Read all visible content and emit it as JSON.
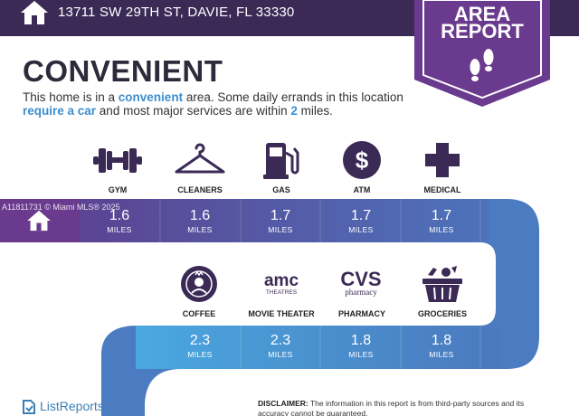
{
  "header": {
    "address": "13711 SW 29TH ST, DAVIE, FL 33330",
    "home_icon": "house-icon"
  },
  "ribbon": {
    "line1": "AREA",
    "line2": "REPORT",
    "icon": "footprints-icon",
    "color": "#6a3a8e"
  },
  "headline": "CONVENIENT",
  "description": {
    "p1": "This home is in a ",
    "hl1": "convenient",
    "p2": " area. Some daily errands in this location ",
    "hl2": "require a car",
    "p3": " and most major services are within ",
    "hl3": "2",
    "p4": " miles."
  },
  "row1": [
    {
      "label": "GYM",
      "icon": "dumbbell-icon",
      "value": "1.6",
      "unit": "MILES"
    },
    {
      "label": "CLEANERS",
      "icon": "hanger-icon",
      "value": "1.6",
      "unit": "MILES"
    },
    {
      "label": "GAS",
      "icon": "gas-pump-icon",
      "value": "1.7",
      "unit": "MILES"
    },
    {
      "label": "ATM",
      "icon": "dollar-icon",
      "value": "1.7",
      "unit": "MILES"
    },
    {
      "label": "MEDICAL",
      "icon": "medical-cross-icon",
      "value": "1.7",
      "unit": "MILES"
    }
  ],
  "row2": [
    {
      "label": "COFFEE",
      "icon": "starbucks-icon",
      "value": "2.3",
      "unit": "MILES"
    },
    {
      "label": "MOVIE THEATER",
      "icon": "amc-theatres-icon",
      "value": "2.3",
      "unit": "MILES"
    },
    {
      "label": "PHARMACY",
      "icon": "cvs-pharmacy-icon",
      "value": "1.8",
      "unit": "MILES"
    },
    {
      "label": "GROCERIES",
      "icon": "grocery-basket-icon",
      "value": "1.8",
      "unit": "MILES"
    }
  ],
  "logo_text": {
    "amc_main": "amc",
    "amc_sub": "THEATRES",
    "cvs_main": "CVS",
    "cvs_sub": "pharmacy"
  },
  "watermark": "A11811731 © Miami MLS® 2025",
  "footer": {
    "brand": "ListReports",
    "disclaimer_label": "DISCLAIMER:",
    "disclaimer_text": " The information in this report is from third-party sources and its accuracy cannot be guaranteed."
  },
  "colors": {
    "topbar": "#3b2a55",
    "purple": "#6a3a8e",
    "blue": "#3d8ecf",
    "highlight": "#3d8ecf"
  }
}
